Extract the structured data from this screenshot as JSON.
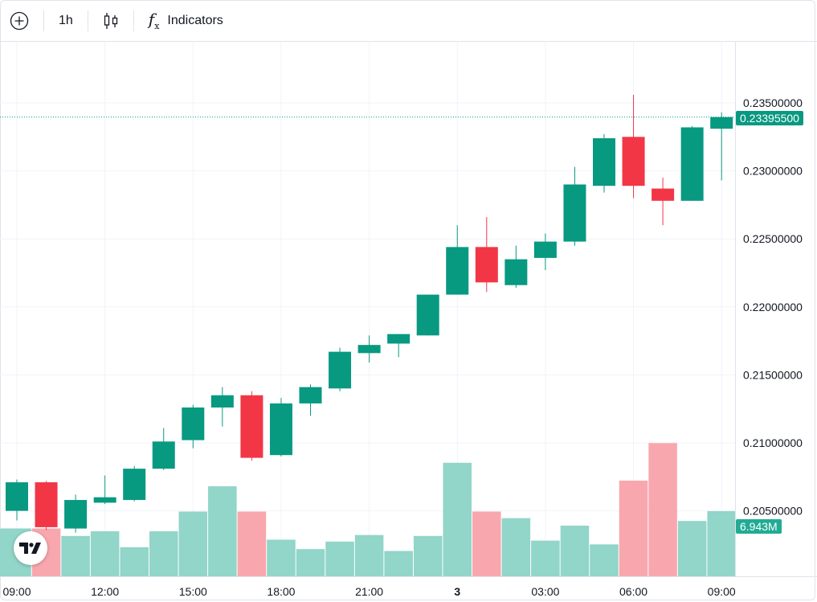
{
  "toolbar": {
    "add_icon": "circle-plus-icon",
    "interval": "1h",
    "chart_type_icon": "candles-icon",
    "indicators_icon": "fx-icon",
    "indicators_label": "Indicators"
  },
  "colors": {
    "up": "#089981",
    "down": "#f23645",
    "up_volume": "#92d5c9",
    "down_volume": "#f9a7ae",
    "grid": "#f0f3fa",
    "axis_text": "#131722"
  },
  "price_badge": "0.23395500",
  "volume_badge": "6.943M",
  "chart_data": {
    "type": "candlestick",
    "interval": "1h",
    "price_axis_ticks": [
      "0.23500000",
      "0.23000000",
      "0.22500000",
      "0.22000000",
      "0.21500000",
      "0.21000000",
      "0.20500000"
    ],
    "price_axis_values": [
      0.235,
      0.23,
      0.225,
      0.22,
      0.215,
      0.21,
      0.205
    ],
    "time_axis_labels": [
      {
        "label": "09:00",
        "index": 0
      },
      {
        "label": "12:00",
        "index": 3
      },
      {
        "label": "15:00",
        "index": 6
      },
      {
        "label": "18:00",
        "index": 9
      },
      {
        "label": "21:00",
        "index": 12
      },
      {
        "label": "3",
        "index": 15,
        "bold": true
      },
      {
        "label": "03:00",
        "index": 18
      },
      {
        "label": "06:00",
        "index": 21
      },
      {
        "label": "09:00",
        "index": 24
      }
    ],
    "last_price": 0.233955,
    "candles": [
      {
        "o": 0.205,
        "h": 0.2073,
        "l": 0.2043,
        "c": 0.2071,
        "v": 5.1
      },
      {
        "o": 0.2071,
        "h": 0.2072,
        "l": 0.2036,
        "c": 0.2038,
        "v": 5.1
      },
      {
        "o": 0.2037,
        "h": 0.2062,
        "l": 0.2034,
        "c": 0.2058,
        "v": 4.3
      },
      {
        "o": 0.2056,
        "h": 0.2076,
        "l": 0.2055,
        "c": 0.206,
        "v": 4.8
      },
      {
        "o": 0.2058,
        "h": 0.2083,
        "l": 0.2057,
        "c": 0.2081,
        "v": 3.1
      },
      {
        "o": 0.2081,
        "h": 0.2111,
        "l": 0.208,
        "c": 0.2101,
        "v": 4.8
      },
      {
        "o": 0.2102,
        "h": 0.2128,
        "l": 0.2096,
        "c": 0.2126,
        "v": 6.9
      },
      {
        "o": 0.2126,
        "h": 0.2141,
        "l": 0.2112,
        "c": 0.2135,
        "v": 9.6
      },
      {
        "o": 0.2135,
        "h": 0.2138,
        "l": 0.2087,
        "c": 0.2089,
        "v": 6.9
      },
      {
        "o": 0.2091,
        "h": 0.2133,
        "l": 0.209,
        "c": 0.2129,
        "v": 3.9
      },
      {
        "o": 0.2129,
        "h": 0.2143,
        "l": 0.212,
        "c": 0.2141,
        "v": 2.9
      },
      {
        "o": 0.214,
        "h": 0.217,
        "l": 0.2138,
        "c": 0.2167,
        "v": 3.7
      },
      {
        "o": 0.2166,
        "h": 0.2179,
        "l": 0.2159,
        "c": 0.2172,
        "v": 4.4
      },
      {
        "o": 0.2173,
        "h": 0.218,
        "l": 0.2163,
        "c": 0.218,
        "v": 2.7
      },
      {
        "o": 0.2179,
        "h": 0.2209,
        "l": 0.2179,
        "c": 0.2209,
        "v": 4.3
      },
      {
        "o": 0.2209,
        "h": 0.226,
        "l": 0.2209,
        "c": 0.2244,
        "v": 12.1
      },
      {
        "o": 0.2244,
        "h": 0.2266,
        "l": 0.2211,
        "c": 0.2218,
        "v": 6.9
      },
      {
        "o": 0.2216,
        "h": 0.2245,
        "l": 0.2214,
        "c": 0.2235,
        "v": 6.2
      },
      {
        "o": 0.2236,
        "h": 0.2254,
        "l": 0.2227,
        "c": 0.2248,
        "v": 3.8
      },
      {
        "o": 0.2248,
        "h": 0.2303,
        "l": 0.2245,
        "c": 0.229,
        "v": 5.4
      },
      {
        "o": 0.2289,
        "h": 0.2327,
        "l": 0.2284,
        "c": 0.2324,
        "v": 3.4
      },
      {
        "o": 0.2325,
        "h": 0.2356,
        "l": 0.228,
        "c": 0.2289,
        "v": 10.2
      },
      {
        "o": 0.2287,
        "h": 0.2295,
        "l": 0.226,
        "c": 0.2278,
        "v": 14.2
      },
      {
        "o": 0.2278,
        "h": 0.2333,
        "l": 0.2278,
        "c": 0.2332,
        "v": 5.9
      },
      {
        "o": 0.2331,
        "h": 0.2343,
        "l": 0.2293,
        "c": 0.233955,
        "v": 6.943
      }
    ]
  }
}
